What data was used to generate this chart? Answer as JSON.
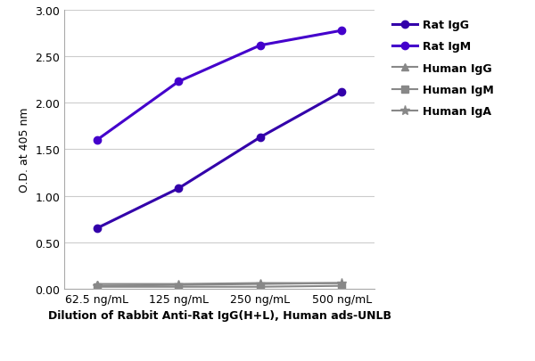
{
  "x_labels": [
    "62.5 ng/mL",
    "125 ng/mL",
    "250 ng/mL",
    "500 ng/mL"
  ],
  "x_values": [
    0,
    1,
    2,
    3
  ],
  "series": [
    {
      "label": "Rat IgG",
      "values": [
        0.65,
        1.08,
        1.63,
        2.12
      ],
      "color": "#3300aa",
      "marker": "o",
      "markersize": 6,
      "linewidth": 2.2,
      "zorder": 3
    },
    {
      "label": "Rat IgM",
      "values": [
        1.6,
        2.23,
        2.62,
        2.78
      ],
      "color": "#4400cc",
      "marker": "o",
      "markersize": 6,
      "linewidth": 2.2,
      "zorder": 3
    },
    {
      "label": "Human IgG",
      "values": [
        0.05,
        0.05,
        0.06,
        0.06
      ],
      "color": "#888888",
      "marker": "^",
      "markersize": 6,
      "linewidth": 1.5,
      "zorder": 2
    },
    {
      "label": "Human IgM",
      "values": [
        0.02,
        0.02,
        0.02,
        0.03
      ],
      "color": "#888888",
      "marker": "s",
      "markersize": 6,
      "linewidth": 1.5,
      "zorder": 2
    },
    {
      "label": "Human IgA",
      "values": [
        0.03,
        0.04,
        0.05,
        0.06
      ],
      "color": "#888888",
      "marker": "*",
      "markersize": 8,
      "linewidth": 1.5,
      "zorder": 2
    }
  ],
  "ylabel": "O.D. at 405 nm",
  "xlabel": "Dilution of Rabbit Anti-Rat IgG(H+L), Human ads-UNLB",
  "ylim": [
    0.0,
    3.0
  ],
  "yticks": [
    0.0,
    0.5,
    1.0,
    1.5,
    2.0,
    2.5,
    3.0
  ],
  "background_color": "#ffffff",
  "grid_color": "#cccccc",
  "legend_fontsize": 9,
  "xlabel_fontsize": 9,
  "ylabel_fontsize": 9,
  "tick_fontsize": 9
}
